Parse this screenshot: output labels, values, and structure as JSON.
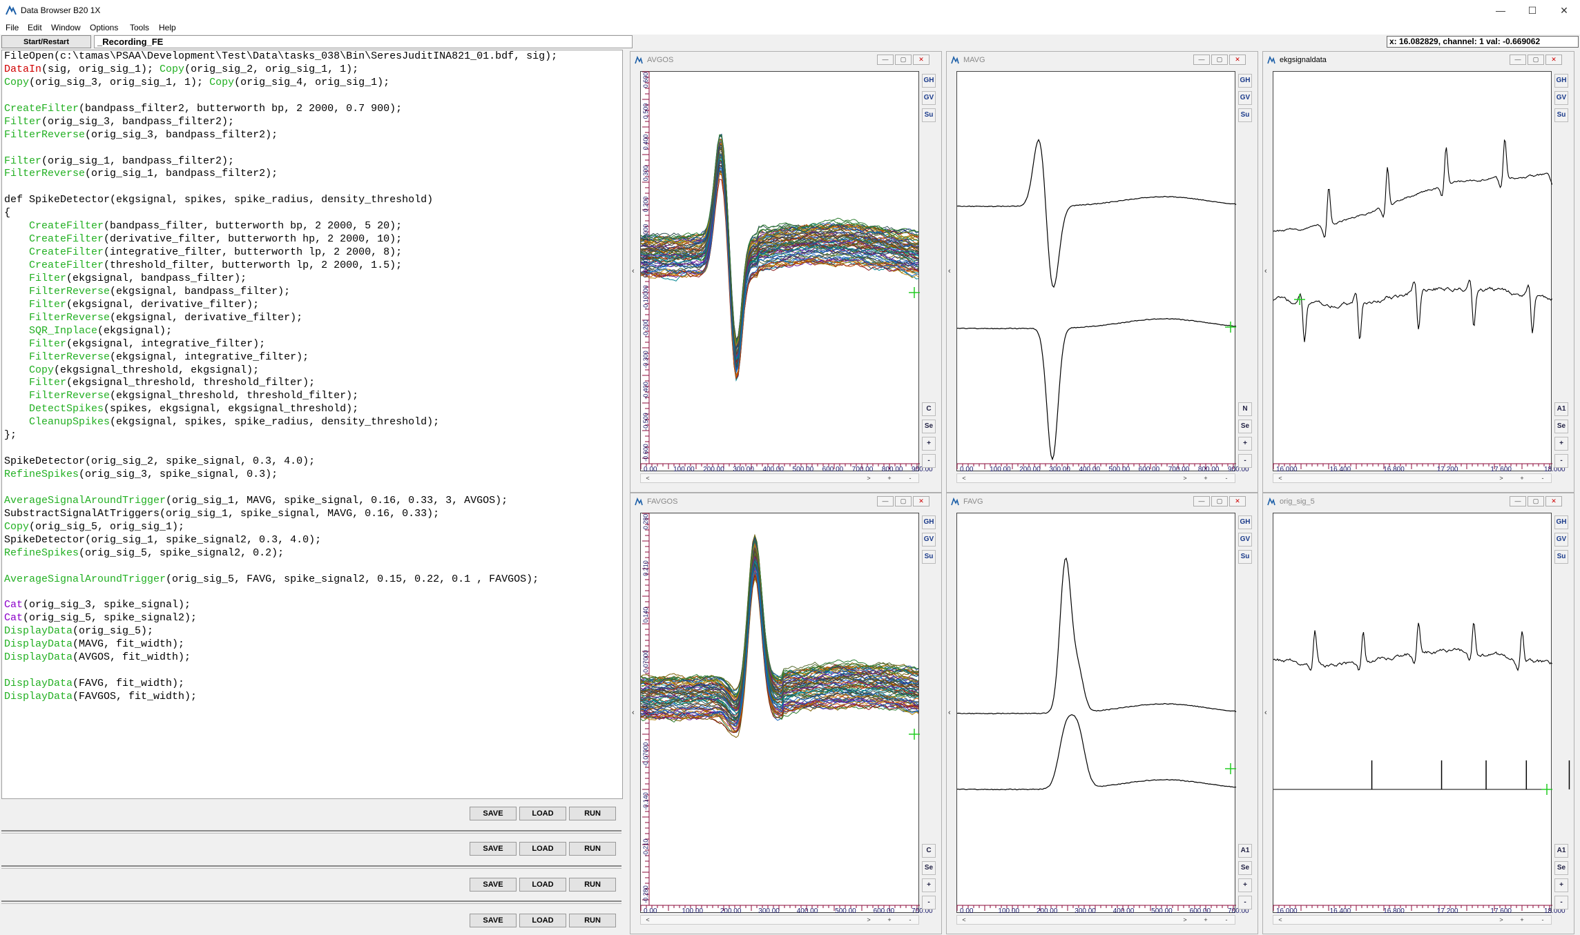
{
  "app": {
    "title": "Data Browser B20 1X"
  },
  "menu": {
    "items": [
      {
        "label": "File"
      },
      {
        "label": "Edit"
      },
      {
        "label": "Window"
      },
      {
        "label": "Options"
      },
      {
        "label": "Tools"
      },
      {
        "label": "Help"
      }
    ]
  },
  "toolbar": {
    "start_label": "Start/Restart",
    "recording_value": "_Recording_FE",
    "coord_readout": "x: 16.082829, channel: 1 val: -0.669062"
  },
  "editor": {
    "lines": [
      "FileOpen(c:\\tamas\\PSAA\\Development\\Test\\Data\\tasks_038\\Bin\\SeresJuditINA821_01.bdf, sig);",
      "DataIn(sig, orig_sig_1); Copy(orig_sig_2, orig_sig_1, 1);",
      "Copy(orig_sig_3, orig_sig_1, 1); Copy(orig_sig_4, orig_sig_1);",
      "",
      "CreateFilter(bandpass_filter2, butterworth bp, 2 2000, 0.7 900);",
      "Filter(orig_sig_3, bandpass_filter2);",
      "FilterReverse(orig_sig_3, bandpass_filter2);",
      "",
      "Filter(orig_sig_1, bandpass_filter2);",
      "FilterReverse(orig_sig_1, bandpass_filter2);",
      "",
      "def SpikeDetector(ekgsignal, spikes, spike_radius, density_threshold)",
      "{",
      "    CreateFilter(bandpass_filter, butterworth bp, 2 2000, 5 20);",
      "    CreateFilter(derivative_filter, butterworth hp, 2 2000, 10);",
      "    CreateFilter(integrative_filter, butterworth lp, 2 2000, 8);",
      "    CreateFilter(threshold_filter, butterworth lp, 2 2000, 1.5);",
      "    Filter(ekgsignal, bandpass_filter);",
      "    FilterReverse(ekgsignal, bandpass_filter);",
      "    Filter(ekgsignal, derivative_filter);",
      "    FilterReverse(ekgsignal, derivative_filter);",
      "    SQR_Inplace(ekgsignal);",
      "    Filter(ekgsignal, integrative_filter);",
      "    FilterReverse(ekgsignal, integrative_filter);",
      "    Copy(ekgsignal_threshold, ekgsignal);",
      "    Filter(ekgsignal_threshold, threshold_filter);",
      "    FilterReverse(ekgsignal_threshold, threshold_filter);",
      "    DetectSpikes(spikes, ekgsignal, ekgsignal_threshold);",
      "    CleanupSpikes(ekgsignal, spikes, spike_radius, density_threshold);",
      "};",
      "",
      "SpikeDetector(orig_sig_2, spike_signal, 0.3, 4.0);",
      "RefineSpikes(orig_sig_3, spike_signal, 0.3);",
      "",
      "AverageSignalAroundTrigger(orig_sig_1, MAVG, spike_signal, 0.16, 0.33, 3, AVGOS);",
      "SubstractSignalAtTriggers(orig_sig_1, spike_signal, MAVG, 0.16, 0.33);",
      "Copy(orig_sig_5, orig_sig_1);",
      "SpikeDetector(orig_sig_1, spike_signal2, 0.3, 4.0);",
      "RefineSpikes(orig_sig_5, spike_signal2, 0.2);",
      "",
      "AverageSignalAroundTrigger(orig_sig_5, FAVG, spike_signal2, 0.15, 0.22, 0.1 , FAVGOS);",
      "",
      "Cat(orig_sig_3, spike_signal);",
      "Cat(orig_sig_5, spike_signal2);",
      "DisplayData(orig_sig_5);",
      "DisplayData(MAVG, fit_width);",
      "DisplayData(AVGOS, fit_width);",
      "",
      "DisplayData(FAVG, fit_width);",
      "DisplayData(FAVGOS, fit_width);"
    ]
  },
  "syntax_colors": {
    "red": "#d00000",
    "green": "#22b022",
    "purple": "#8b00c9",
    "plain": "#000000"
  },
  "script_buttons": {
    "save": "SAVE",
    "load": "LOAD",
    "run": "RUN"
  },
  "panels": [
    {
      "title": "AVGOS",
      "active": false,
      "x_ticks": [
        "0.00",
        "100.00",
        "200.00",
        "300.00",
        "400.00",
        "500.00",
        "600.00",
        "700.00",
        "800.00",
        "900.00"
      ],
      "y_ticks": [
        "0.600",
        "0.500",
        "0.400",
        "0.300",
        "0.200",
        "0.10000",
        "0.00000",
        "-0.10000",
        "-0.200",
        "-0.300",
        "-0.400",
        "-0.500",
        "-0.600"
      ],
      "side_buttons": [
        "GH",
        "GV",
        "Su"
      ],
      "side_buttons_bottom": [
        "C",
        "Se",
        "+",
        "-"
      ]
    },
    {
      "title": "MAVG",
      "active": false,
      "x_ticks": [
        "0.00",
        "100.00",
        "200.00",
        "300.00",
        "400.00",
        "500.00",
        "600.00",
        "700.00",
        "800.00",
        "900.00"
      ],
      "y_ticks": [],
      "side_buttons": [
        "GH",
        "GV",
        "Su"
      ],
      "side_buttons_bottom": [
        "N",
        "Se",
        "+",
        "-"
      ]
    },
    {
      "title": "ekgsignaldata",
      "active": true,
      "x_ticks": [
        "16.000",
        "16.400",
        "16.800",
        "17.200",
        "17.600",
        "18.000"
      ],
      "y_ticks": [],
      "side_buttons": [
        "GH",
        "GV",
        "Su"
      ],
      "side_buttons_bottom": [
        "A1",
        "Se",
        "+",
        "-"
      ]
    },
    {
      "title": "FAVGOS",
      "active": false,
      "x_ticks": [
        "0.00",
        "100.00",
        "200.00",
        "300.00",
        "400.00",
        "500.00",
        "600.00",
        "700.00"
      ],
      "y_ticks": [
        "0.280",
        "0.210",
        "0.140",
        "0.07000",
        "0.00",
        "-0.07000",
        "-0.140",
        "-0.210",
        "-0.280"
      ],
      "side_buttons": [
        "GH",
        "GV",
        "Su"
      ],
      "side_buttons_bottom": [
        "C",
        "Se",
        "+",
        "-"
      ]
    },
    {
      "title": "FAVG",
      "active": false,
      "x_ticks": [
        "0.00",
        "100.00",
        "200.00",
        "300.00",
        "400.00",
        "500.00",
        "600.00",
        "700.00"
      ],
      "y_ticks": [],
      "side_buttons": [
        "GH",
        "GV",
        "Su"
      ],
      "side_buttons_bottom": [
        "A1",
        "Se",
        "+",
        "-"
      ]
    },
    {
      "title": "orig_sig_5",
      "active": false,
      "x_ticks": [
        "16.000",
        "16.400",
        "16.800",
        "17.200",
        "17.600",
        "18.000"
      ],
      "y_ticks": [],
      "side_buttons": [
        "GH",
        "GV",
        "Su"
      ],
      "side_buttons_bottom": [
        "A1",
        "Se",
        "+",
        "-"
      ]
    }
  ]
}
